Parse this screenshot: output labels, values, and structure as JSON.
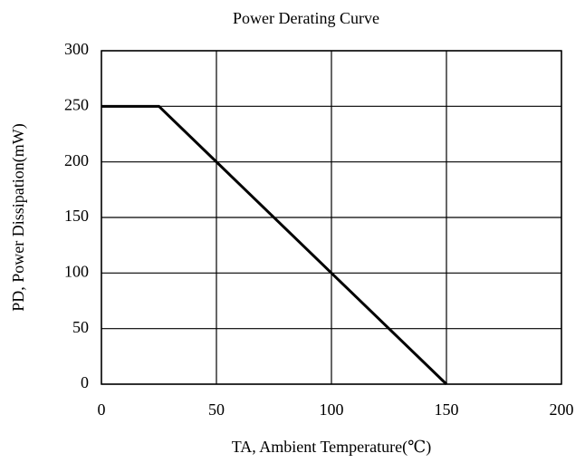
{
  "chart_data": {
    "type": "line",
    "title": "Power Derating Curve",
    "x_label": "TA, Ambient Temperature(℃)",
    "y_label": "PD, Power Dissipation(mW)",
    "x": [
      0,
      25,
      150
    ],
    "values": [
      250,
      250,
      0
    ],
    "color": "#000000",
    "xlim": [
      0,
      200
    ],
    "xticks": [
      0,
      50,
      100,
      150,
      200
    ],
    "ylim": [
      0,
      300
    ],
    "yticks": [
      0,
      50,
      100,
      150,
      200,
      250,
      300
    ],
    "grid": true
  }
}
